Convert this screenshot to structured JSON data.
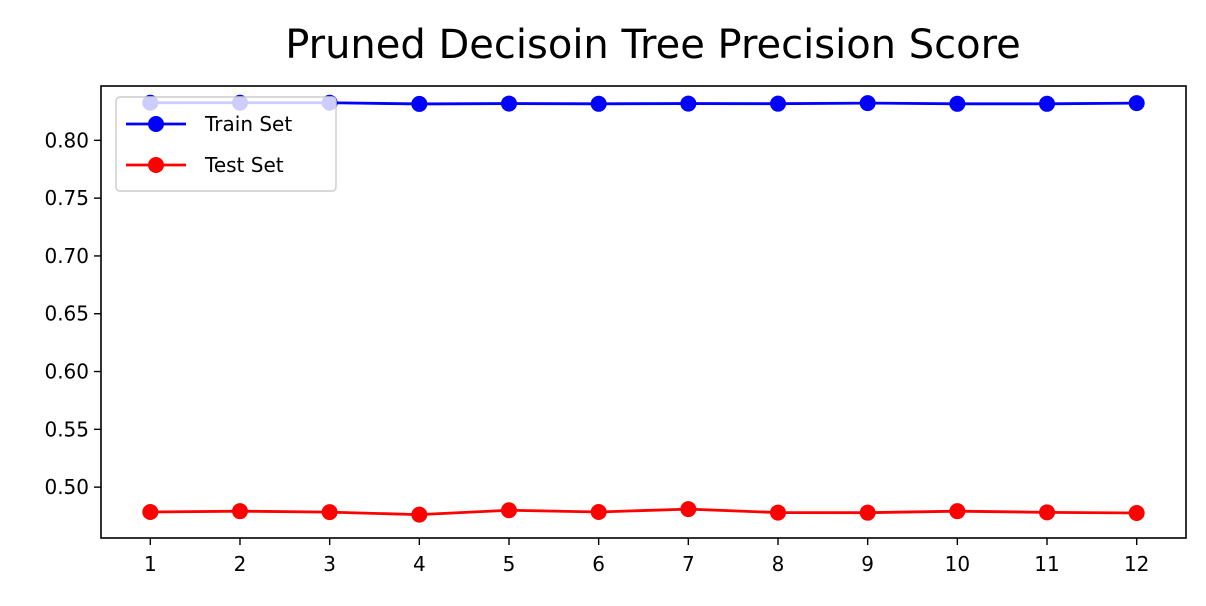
{
  "chart_data": {
    "type": "line",
    "title": "Pruned Decisoin Tree Precision Score",
    "xlabel": "",
    "ylabel": "",
    "x": [
      1,
      2,
      3,
      4,
      5,
      6,
      7,
      8,
      9,
      10,
      11,
      12
    ],
    "x_tick_labels": [
      "1",
      "2",
      "3",
      "4",
      "5",
      "6",
      "7",
      "8",
      "9",
      "10",
      "11",
      "12"
    ],
    "y_ticks": [
      0.5,
      0.55,
      0.6,
      0.65,
      0.7,
      0.75,
      0.8
    ],
    "y_tick_labels": [
      "0.50",
      "0.55",
      "0.60",
      "0.65",
      "0.70",
      "0.75",
      "0.80"
    ],
    "xlim": [
      0.45,
      12.55
    ],
    "ylim": [
      0.456,
      0.847
    ],
    "grid": false,
    "legend_position": "top-left",
    "series": [
      {
        "name": "Train Set",
        "color": "#0000ff",
        "marker": "circle",
        "values": [
          0.8325,
          0.8325,
          0.8325,
          0.8315,
          0.8318,
          0.8316,
          0.8318,
          0.8317,
          0.8322,
          0.8316,
          0.8316,
          0.8322
        ]
      },
      {
        "name": "Test Set",
        "color": "#ff0000",
        "marker": "circle",
        "values": [
          0.4785,
          0.4792,
          0.4784,
          0.4762,
          0.48,
          0.4785,
          0.481,
          0.478,
          0.4779,
          0.4792,
          0.4782,
          0.4776
        ]
      }
    ]
  }
}
